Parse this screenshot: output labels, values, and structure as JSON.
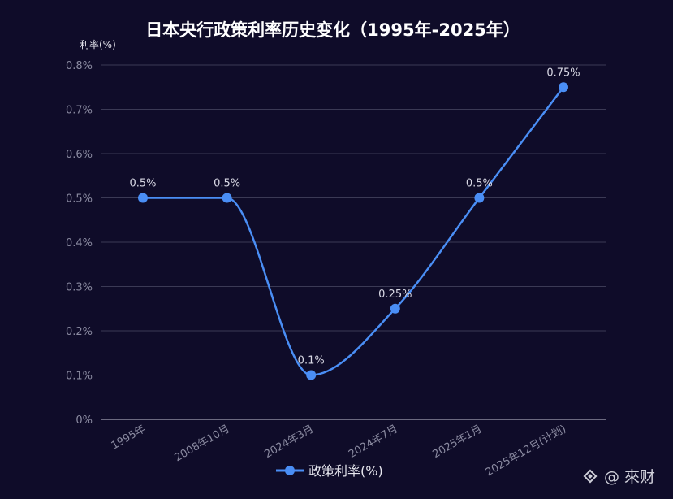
{
  "chart_data": {
    "type": "line",
    "title": "日本央行政策利率历史变化（1995年-2025年）",
    "ylabel": "利率(%)",
    "categories": [
      "1995年",
      "2008年10月",
      "2024年3月",
      "2024年7月",
      "2025年1月",
      "2025年12月(计划)"
    ],
    "series": [
      {
        "name": "政策利率(%)",
        "values": [
          0.5,
          0.5,
          0.1,
          0.25,
          0.5,
          0.75
        ],
        "color": "#4a8ef5"
      }
    ],
    "data_labels": [
      "0.5%",
      "0.5%",
      "0.1%",
      "0.25%",
      "0.5%",
      "0.75%"
    ],
    "ylim": [
      0,
      0.8
    ],
    "yticks": [
      "0%",
      "0.1%",
      "0.2%",
      "0.3%",
      "0.4%",
      "0.5%",
      "0.6%",
      "0.7%",
      "0.8%"
    ],
    "grid": true,
    "smooth": true,
    "legend": "bottom-center"
  },
  "watermark": {
    "text": "@ 來财",
    "icon": "diamond-logo-icon"
  },
  "colors": {
    "background": "#0f0c29",
    "grid": "#3b3a55",
    "axis": "#c8c8d8",
    "line": "#4a8ef5"
  }
}
